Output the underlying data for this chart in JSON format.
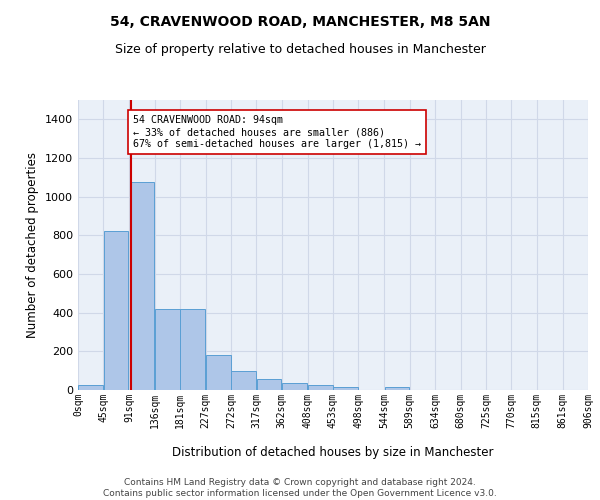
{
  "title": "54, CRAVENWOOD ROAD, MANCHESTER, M8 5AN",
  "subtitle": "Size of property relative to detached houses in Manchester",
  "xlabel": "Distribution of detached houses by size in Manchester",
  "ylabel": "Number of detached properties",
  "bar_color": "#aec6e8",
  "bar_edge_color": "#5a9fd4",
  "grid_color": "#d0d8e8",
  "background_color": "#eaf0f8",
  "bin_edges": [
    0,
    45,
    91,
    136,
    181,
    227,
    272,
    317,
    362,
    408,
    453,
    498,
    544,
    589,
    634,
    680,
    725,
    770,
    815,
    861,
    906
  ],
  "bin_labels": [
    "0sqm",
    "45sqm",
    "91sqm",
    "136sqm",
    "181sqm",
    "227sqm",
    "272sqm",
    "317sqm",
    "362sqm",
    "408sqm",
    "453sqm",
    "498sqm",
    "544sqm",
    "589sqm",
    "634sqm",
    "680sqm",
    "725sqm",
    "770sqm",
    "815sqm",
    "861sqm",
    "906sqm"
  ],
  "bar_heights": [
    25,
    825,
    1075,
    420,
    420,
    180,
    100,
    55,
    35,
    25,
    15,
    0,
    15,
    0,
    0,
    0,
    0,
    0,
    0,
    0
  ],
  "property_sqm": 94,
  "annotation_line1": "54 CRAVENWOOD ROAD: 94sqm",
  "annotation_line2": "← 33% of detached houses are smaller (886)",
  "annotation_line3": "67% of semi-detached houses are larger (1,815) →",
  "vline_color": "#cc0000",
  "annotation_box_color": "#ffffff",
  "annotation_box_edge_color": "#cc0000",
  "ylim": [
    0,
    1500
  ],
  "yticks": [
    0,
    200,
    400,
    600,
    800,
    1000,
    1200,
    1400
  ],
  "footer_line1": "Contains HM Land Registry data © Crown copyright and database right 2024.",
  "footer_line2": "Contains public sector information licensed under the Open Government Licence v3.0."
}
